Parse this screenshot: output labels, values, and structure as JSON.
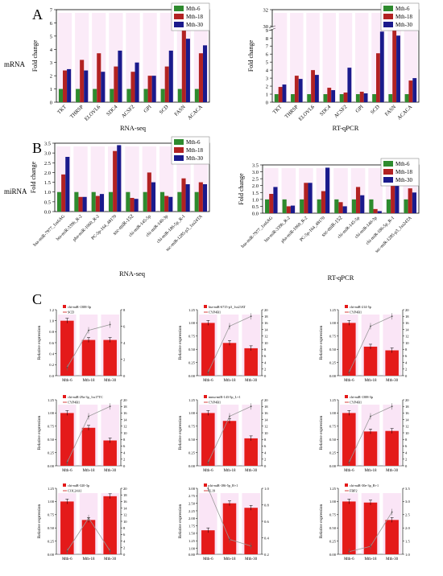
{
  "figure": {
    "panel_labels": {
      "a": "A",
      "b": "B",
      "c": "C"
    },
    "row_labels": {
      "mrna": "mRNA",
      "mirna": "miRNA"
    },
    "legend": [
      "Mth-6",
      "Mth-18",
      "Mth-30"
    ]
  },
  "colors": {
    "mth6": "#2e8b2e",
    "mth18": "#b22222",
    "mth30": "#1a1a8c",
    "bar_red": "#e41a1a",
    "line_red": "#cc1111",
    "highlight": "#f3c6ec"
  },
  "chart_data": [
    {
      "id": "A_left",
      "type": "bar",
      "xlabel": "RNA-seq",
      "ylabel": "Fold change",
      "ylim": [
        0,
        7
      ],
      "yticks": [
        0,
        1,
        2,
        3,
        4,
        5,
        6,
        7
      ],
      "categories": [
        "TKT",
        "THRSP",
        "ELOVL6",
        "SDC4",
        "ACSF2",
        "GPI",
        "SCD",
        "FASN",
        "ACACA"
      ],
      "series": [
        {
          "name": "Mth-6",
          "values": [
            1,
            1,
            1,
            1,
            1,
            1,
            1,
            1,
            1
          ]
        },
        {
          "name": "Mth-18",
          "values": [
            2.4,
            3.2,
            3.7,
            2.7,
            2.3,
            2.0,
            2.7,
            6.0,
            3.7
          ]
        },
        {
          "name": "Mth-30",
          "values": [
            2.5,
            2.4,
            2.3,
            3.9,
            3.0,
            2.0,
            3.9,
            4.8,
            4.3
          ]
        }
      ]
    },
    {
      "id": "A_right",
      "type": "bar",
      "xlabel": "RT-qPCR",
      "ylabel": "Fold change",
      "ylim": [
        0,
        32
      ],
      "yticks": [
        0,
        1,
        2,
        3,
        4,
        5,
        6,
        7,
        8,
        9,
        30,
        32
      ],
      "axis_break": true,
      "categories": [
        "TKT",
        "THRSP",
        "ELOVL6",
        "SDC4",
        "ACSF2",
        "GPI",
        "SCD",
        "FASN",
        "ACACA"
      ],
      "series": [
        {
          "name": "Mth-6",
          "values": [
            1,
            1,
            1,
            1,
            1,
            1,
            1,
            1,
            1
          ]
        },
        {
          "name": "Mth-18",
          "values": [
            1.9,
            3.3,
            4.0,
            1.8,
            1.2,
            1.3,
            6.1,
            32,
            2.7
          ]
        },
        {
          "name": "Mth-30",
          "values": [
            2.2,
            2.9,
            3.4,
            1.5,
            4.3,
            1.1,
            8.8,
            8.3,
            3.0
          ]
        }
      ]
    },
    {
      "id": "B_left",
      "type": "bar",
      "xlabel": "RNA-seq",
      "ylabel": "Fold change",
      "ylim": [
        0,
        3.5
      ],
      "yticks": [
        0.0,
        0.5,
        1.0,
        1.5,
        2.0,
        2.5,
        3.0,
        3.5
      ],
      "categories": [
        "hsa-miR-7977_1ss6AG",
        "bta-miR-339b_R-2",
        "pha-miR-1060_R-2",
        "PC-5p-164_48170",
        "ssc-miR-152",
        "chi-miR-145-5p",
        "chi-miR-140-3p",
        "chi-miR-186-5p_R-1",
        "ssc-miR-1285-p3_1ss24TA"
      ],
      "series": [
        {
          "name": "Mth-6",
          "values": [
            1,
            1,
            1,
            1,
            1,
            1,
            1,
            1,
            1
          ]
        },
        {
          "name": "Mth-18",
          "values": [
            1.9,
            0.75,
            0.8,
            3.1,
            0.7,
            2.0,
            0.8,
            1.7,
            1.5
          ]
        },
        {
          "name": "Mth-30",
          "values": [
            2.8,
            0.75,
            0.9,
            3.4,
            0.65,
            1.5,
            0.75,
            1.4,
            1.4
          ]
        }
      ]
    },
    {
      "id": "B_right",
      "type": "bar",
      "xlabel": "RT-qPCR",
      "ylabel": "Fold change",
      "ylim": [
        0,
        3.5
      ],
      "yticks": [
        0.0,
        0.5,
        1.0,
        1.5,
        2.0,
        2.5,
        3.0,
        3.5
      ],
      "categories": [
        "hsa-miR-7977_1ss6AG",
        "bta-miR-339b_R-2",
        "pha-miR-1060_R-2",
        "PC-5p-164_48170",
        "ssc-miR-152",
        "chi-miR-145-5p",
        "chi-miR-140-3p",
        "chi-miR-186-5p_R-1",
        "ssc-miR-1285-p3_1ss24TA"
      ],
      "series": [
        {
          "name": "Mth-6",
          "values": [
            1,
            1,
            1,
            1,
            1,
            1,
            1,
            1,
            1
          ]
        },
        {
          "name": "Mth-18",
          "values": [
            1.4,
            0.5,
            2.2,
            1.6,
            0.8,
            1.9,
            0.3,
            2.5,
            1.8
          ]
        },
        {
          "name": "Mth-30",
          "values": [
            1.9,
            0.55,
            2.2,
            3.3,
            0.5,
            1.3,
            0.15,
            2.4,
            1.5
          ]
        }
      ]
    },
    {
      "id": "C1",
      "type": "bar+line",
      "legend": [
        "chi-miR-1388-3p",
        "SCD"
      ],
      "categories": [
        "Mth-6",
        "Mth-18",
        "Mth-30"
      ],
      "ylabel": "Relative expression",
      "ylim": [
        0,
        1.2
      ],
      "yticks": [
        0.0,
        0.2,
        0.4,
        0.6,
        0.8,
        1.0,
        1.2
      ],
      "bars": [
        1.0,
        0.65,
        0.65
      ],
      "y2lim": [
        0,
        8
      ],
      "y2ticks": [
        0,
        2,
        4,
        6,
        8
      ],
      "line": [
        1,
        5.5,
        6.2
      ]
    },
    {
      "id": "C2",
      "type": "bar+line",
      "legend": [
        "bta-miR-6715-p3_1ss23AT",
        "CYP4B1"
      ],
      "categories": [
        "Mth-6",
        "Mth-18",
        "Mth-30"
      ],
      "ylabel": "Relative expression",
      "ylim": [
        0,
        1.25
      ],
      "yticks": [
        0.0,
        0.25,
        0.5,
        0.75,
        1.0,
        1.25
      ],
      "bars": [
        1.0,
        0.62,
        0.52
      ],
      "y2lim": [
        0,
        20
      ],
      "y2ticks": [
        0,
        2,
        4,
        6,
        8,
        10,
        12,
        14,
        16,
        18,
        20
      ],
      "line": [
        1,
        15,
        18
      ]
    },
    {
      "id": "C3",
      "type": "bar+line",
      "legend": [
        "chi-miR-214-5p",
        "CYP4B1"
      ],
      "categories": [
        "Mth-6",
        "Mth-18",
        "Mth-30"
      ],
      "ylabel": "Relative expression",
      "ylim": [
        0,
        1.25
      ],
      "yticks": [
        0.0,
        0.25,
        0.5,
        0.75,
        1.0,
        1.25
      ],
      "bars": [
        1.0,
        0.55,
        0.48
      ],
      "y2lim": [
        0,
        20
      ],
      "y2ticks": [
        0,
        2,
        4,
        6,
        8,
        10,
        12,
        14,
        16,
        18,
        20
      ],
      "line": [
        1,
        15,
        18
      ]
    },
    {
      "id": "C4",
      "type": "bar+line",
      "legend": [
        "chi-miR-29a-3p_1ss17TC",
        "CYP4B1"
      ],
      "categories": [
        "Mth-6",
        "Mth-18",
        "Mth-30"
      ],
      "ylabel": "Relative expression",
      "ylim": [
        0,
        1.25
      ],
      "yticks": [
        0.0,
        0.25,
        0.5,
        0.75,
        1.0,
        1.25
      ],
      "bars": [
        1.0,
        0.72,
        0.48
      ],
      "y2lim": [
        0,
        20
      ],
      "y2ticks": [
        0,
        2,
        4,
        6,
        8,
        10,
        12,
        14,
        16,
        18,
        20
      ],
      "line": [
        1,
        15,
        18
      ]
    },
    {
      "id": "C5",
      "type": "bar+line",
      "legend": [
        "mmu-miR-143-5p_L+1",
        "CYP4B1"
      ],
      "categories": [
        "Mth-6",
        "Mth-18",
        "Mth-30"
      ],
      "ylabel": "Relative expression",
      "ylim": [
        0,
        1.25
      ],
      "yticks": [
        0.0,
        0.25,
        0.5,
        0.75,
        1.0,
        1.25
      ],
      "bars": [
        1.0,
        0.85,
        0.52
      ],
      "y2lim": [
        0,
        20
      ],
      "y2ticks": [
        0,
        2,
        4,
        6,
        8,
        10,
        12,
        14,
        16,
        18,
        20
      ],
      "line": [
        1,
        15,
        18
      ]
    },
    {
      "id": "C6",
      "type": "bar+line",
      "legend": [
        "chi-miR-1388-3p",
        "CYP4B1"
      ],
      "categories": [
        "Mth-6",
        "Mth-18",
        "Mth-30"
      ],
      "ylabel": "Relative expression",
      "ylim": [
        0,
        1.25
      ],
      "yticks": [
        0.0,
        0.25,
        0.5,
        0.75,
        1.0,
        1.25
      ],
      "bars": [
        1.0,
        0.65,
        0.66
      ],
      "y2lim": [
        0,
        20
      ],
      "y2ticks": [
        0,
        2,
        4,
        6,
        8,
        10,
        12,
        14,
        16,
        18,
        20
      ],
      "line": [
        1,
        15,
        18
      ]
    },
    {
      "id": "C7",
      "type": "bar+line",
      "legend": [
        "chi-miR-320-3p",
        "COL24A1"
      ],
      "categories": [
        "Mth-6",
        "Mth-18",
        "Mth-30"
      ],
      "ylabel": "Relative expression",
      "ylim": [
        0,
        1.25
      ],
      "yticks": [
        0.0,
        0.25,
        0.5,
        0.75,
        1.0,
        1.25
      ],
      "bars": [
        1.0,
        0.65,
        1.1
      ],
      "y2lim": [
        0,
        20
      ],
      "y2ticks": [
        0,
        2,
        4,
        6,
        8,
        10,
        12,
        14,
        16,
        18,
        20
      ],
      "line": [
        1,
        11,
        1
      ]
    },
    {
      "id": "C8",
      "type": "bar+line",
      "legend": [
        "chi-miR-186-5p_R+1",
        "IL19"
      ],
      "categories": [
        "Mth-6",
        "Mth-18",
        "Mth-30"
      ],
      "ylabel": "Relative expression",
      "ylim": [
        0.8,
        3.0
      ],
      "yticks": [
        0.8,
        1.0,
        1.25,
        1.5,
        1.75,
        2.0,
        2.25,
        2.5,
        2.75,
        3.0
      ],
      "bars": [
        1.6,
        2.5,
        2.35
      ],
      "y2lim": [
        0.2,
        1.0
      ],
      "y2ticks": [
        0.2,
        0.4,
        0.6,
        0.8,
        1.0
      ],
      "line": [
        1.0,
        0.38,
        0.3
      ]
    },
    {
      "id": "C9",
      "type": "bar+line",
      "legend": [
        "chi-miR-30e-3p_R+1",
        "FBP2"
      ],
      "categories": [
        "Mth-6",
        "Mth-18",
        "Mth-30"
      ],
      "ylabel": "Relative expression",
      "ylim": [
        0,
        1.25
      ],
      "yticks": [
        0.0,
        0.25,
        0.5,
        0.75,
        1.0,
        1.25
      ],
      "bars": [
        1.0,
        0.98,
        0.65
      ],
      "y2lim": [
        1.0,
        3.5
      ],
      "y2ticks": [
        1.0,
        1.5,
        2.0,
        2.5,
        3.0,
        3.5
      ],
      "line": [
        1.1,
        1.3,
        2.6
      ]
    }
  ]
}
